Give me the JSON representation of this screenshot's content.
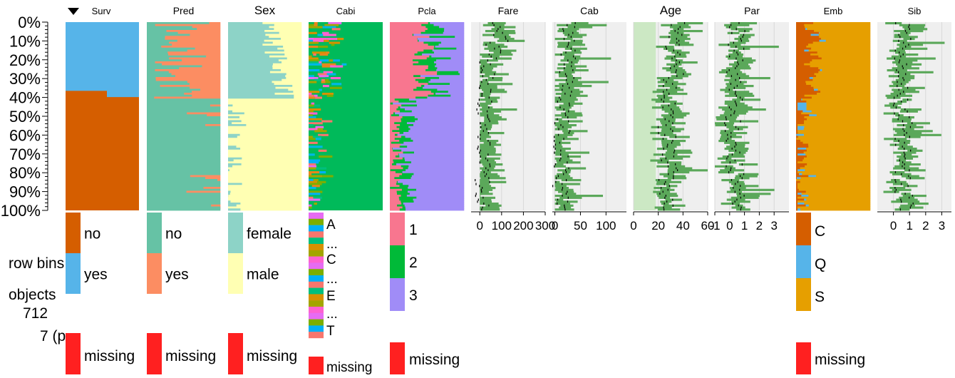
{
  "chart_data": {
    "type": "tableplot",
    "sort_indicator": "▼",
    "y_ticks": [
      "0%",
      "10%",
      "20%",
      "30%",
      "40%",
      "50%",
      "60%",
      "70%",
      "80%",
      "90%",
      "100%"
    ],
    "side_labels": {
      "row_bins": "row bins",
      "objects": "objects",
      "objects_count": "712",
      "bin_info": "7 (p"
    },
    "colors": {
      "no": "#d55e00",
      "yes": "#56b4e9",
      "pred_no": "#66c2a5",
      "pred_yes": "#fc8d62",
      "female": "#8dd3c7",
      "male": "#ffffb3",
      "missing": "#ff2020",
      "green": "#5ba85a",
      "pclass1": "#f8768f",
      "pclass2": "#00ba38",
      "pclass3": "#a08cf7",
      "emb_C": "#d55e00",
      "emb_Q": "#56b4e9",
      "emb_S": "#e69f00",
      "panel_bg": "#efefef",
      "age_band": "#cce8c4"
    },
    "columns": [
      {
        "name": "Surv",
        "type": "categorical",
        "categories": [
          "no",
          "yes"
        ],
        "missing_label": "missing"
      },
      {
        "name": "Pred",
        "type": "categorical",
        "categories": [
          "no",
          "yes"
        ],
        "missing_label": "missing"
      },
      {
        "name": "Sex",
        "type": "categorical",
        "categories": [
          "female",
          "male"
        ],
        "missing_label": "missing"
      },
      {
        "name": "Cabi",
        "type": "categorical",
        "categories": [
          "A",
          "...",
          "C",
          "...",
          "E",
          "...",
          "T"
        ],
        "missing_label": "missing"
      },
      {
        "name": "Pcla",
        "type": "categorical",
        "categories": [
          "1",
          "2",
          "3"
        ],
        "missing_label": "missing"
      },
      {
        "name": "Fare",
        "type": "numeric",
        "xlim": [
          -40,
          300
        ],
        "ticks": [
          "0",
          "100",
          "200",
          "300"
        ]
      },
      {
        "name": "Cab",
        "type": "numeric",
        "xlim": [
          -5,
          140
        ],
        "ticks": [
          "0",
          "50",
          "100"
        ]
      },
      {
        "name": "Age",
        "type": "numeric",
        "xlim": [
          0,
          60
        ],
        "ticks": [
          "0",
          "20",
          "40",
          "60"
        ]
      },
      {
        "name": "Par",
        "type": "numeric",
        "xlim": [
          -1,
          4
        ],
        "ticks": [
          "-1",
          "0",
          "1",
          "2",
          "3"
        ]
      },
      {
        "name": "Emb",
        "type": "categorical",
        "categories": [
          "C",
          "Q",
          "S"
        ],
        "missing_label": "missing"
      },
      {
        "name": "Sib",
        "type": "numeric",
        "xlim": [
          -1,
          3.6
        ],
        "ticks": [
          "0",
          "1",
          "2",
          "3"
        ]
      }
    ],
    "surv_no_fraction": [
      0.365,
      0.398
    ],
    "numeric_means": {
      "Fare": [
        95,
        60,
        35,
        25,
        18,
        15,
        12,
        14,
        10,
        15
      ],
      "Cab": [
        30,
        28,
        24,
        22,
        20,
        14,
        12,
        12,
        11,
        12
      ],
      "Age": [
        35,
        32,
        34,
        30,
        28,
        26,
        28,
        29,
        27,
        26
      ],
      "Par": [
        0.5,
        0.4,
        0.3,
        0.4,
        0.5,
        0.2,
        0.2,
        0.3,
        0.4,
        0.6
      ],
      "Sib": [
        0.6,
        0.5,
        0.4,
        0.4,
        0.5,
        0.7,
        0.6,
        0.5,
        0.6,
        0.8
      ]
    },
    "title": "",
    "xlabel": "",
    "ylabel": ""
  }
}
